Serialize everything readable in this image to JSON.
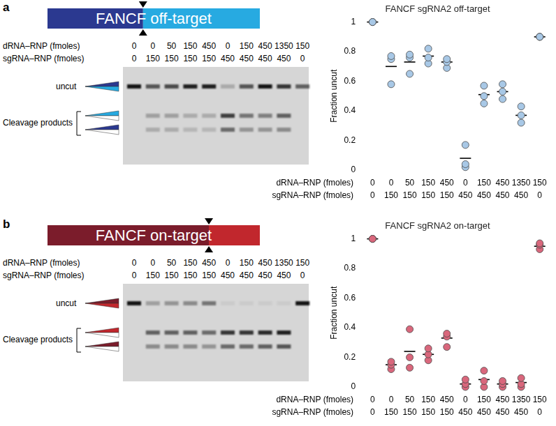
{
  "panels": [
    {
      "label": "a",
      "construct": "FANCF off-target",
      "colors": [
        "#2b3990",
        "#27aae1"
      ],
      "gel": {
        "rows": [
          {
            "label": "dRNA–RNP (fmoles)",
            "values": [
              0,
              0,
              50,
              150,
              450,
              0,
              150,
              450,
              1350,
              150
            ]
          },
          {
            "label": "sgRNA–RNP (fmoles)",
            "values": [
              0,
              150,
              150,
              150,
              150,
              450,
              450,
              450,
              450,
              0
            ]
          }
        ],
        "band_labels": [
          "uncut",
          "Cleavage products"
        ],
        "band_intensity": [
          [
            0.9,
            0,
            0
          ],
          [
            0.6,
            0.25,
            0.2
          ],
          [
            0.65,
            0.25,
            0.2
          ],
          [
            0.85,
            0.2,
            0.15
          ],
          [
            0.85,
            0.2,
            0.15
          ],
          [
            0.2,
            0.7,
            0.5
          ],
          [
            0.6,
            0.45,
            0.3
          ],
          [
            0.9,
            0.4,
            0.3
          ],
          [
            0.75,
            0.55,
            0.35
          ],
          [
            0.55,
            0,
            0
          ]
        ]
      }
    },
    {
      "label": "b",
      "construct": "FANCF on-target",
      "colors": [
        "#7b1c2b",
        "#c1272d"
      ],
      "gel": {
        "rows": [
          {
            "label": "dRNA–RNP (fmoles)",
            "values": [
              0,
              0,
              50,
              150,
              450,
              0,
              150,
              450,
              1350,
              150
            ]
          },
          {
            "label": "sgRNA–RNP (fmoles)",
            "values": [
              0,
              150,
              150,
              150,
              150,
              450,
              450,
              450,
              450,
              0
            ]
          }
        ],
        "band_labels": [
          "uncut",
          "Cleavage products"
        ],
        "band_intensity": [
          [
            0.9,
            0,
            0
          ],
          [
            0.25,
            0.55,
            0.35
          ],
          [
            0.3,
            0.55,
            0.35
          ],
          [
            0.35,
            0.55,
            0.35
          ],
          [
            0.45,
            0.5,
            0.3
          ],
          [
            0.05,
            0.75,
            0.5
          ],
          [
            0.05,
            0.75,
            0.5
          ],
          [
            0.05,
            0.8,
            0.55
          ],
          [
            0.05,
            0.85,
            0.6
          ],
          [
            0.9,
            0,
            0
          ]
        ]
      }
    }
  ],
  "chart_data": [
    {
      "type": "scatter",
      "title": "FANCF sgRNA2 off-target",
      "y_label": "Fraction uncut",
      "category_rows": [
        "dRNA–RNP (fmoles)",
        "sgRNA–RNP (fmoles)"
      ],
      "categories": [
        [
          0,
          0
        ],
        [
          0,
          150
        ],
        [
          50,
          150
        ],
        [
          150,
          150
        ],
        [
          450,
          150
        ],
        [
          0,
          450
        ],
        [
          150,
          450
        ],
        [
          450,
          450
        ],
        [
          1350,
          450
        ],
        [
          150,
          0
        ]
      ],
      "values": [
        [
          1,
          1,
          1
        ],
        [
          0.58,
          0.75,
          0.77
        ],
        [
          0.65,
          0.76,
          0.78
        ],
        [
          0.72,
          0.76,
          0.82
        ],
        [
          0.69,
          0.73,
          0.75
        ],
        [
          0.02,
          0.04,
          0.17
        ],
        [
          0.45,
          0.5,
          0.57
        ],
        [
          0.48,
          0.53,
          0.58
        ],
        [
          0.32,
          0.37,
          0.43
        ],
        [
          0.9,
          0.9,
          0.9
        ]
      ],
      "means": [
        1,
        0.7,
        0.73,
        0.77,
        0.73,
        0.08,
        0.51,
        0.53,
        0.37,
        0.9
      ],
      "color": "#a8c8e6",
      "marker": "circle",
      "ylim": [
        0,
        1
      ],
      "yticks": [
        0,
        0.2,
        0.4,
        0.6,
        0.8,
        1
      ],
      "grid": false
    },
    {
      "type": "scatter",
      "title": "FANCF sgRNA2 on-target",
      "y_label": "Fraction uncut",
      "category_rows": [
        "dRNA–RNP (fmoles)",
        "sgRNA–RNP (fmoles)"
      ],
      "categories": [
        [
          0,
          0
        ],
        [
          0,
          150
        ],
        [
          50,
          150
        ],
        [
          150,
          150
        ],
        [
          450,
          150
        ],
        [
          0,
          450
        ],
        [
          150,
          450
        ],
        [
          450,
          450
        ],
        [
          1350,
          450
        ],
        [
          150,
          0
        ]
      ],
      "values": [
        [
          1,
          1,
          1
        ],
        [
          0.12,
          0.15,
          0.17
        ],
        [
          0.13,
          0.2,
          0.39
        ],
        [
          0.18,
          0.22,
          0.26
        ],
        [
          0.27,
          0.34,
          0.36
        ],
        [
          0,
          0.02,
          0.05
        ],
        [
          0,
          0.04,
          0.11
        ],
        [
          0,
          0.02,
          0.04
        ],
        [
          0,
          0.02,
          0.06
        ],
        [
          0.93,
          0.96,
          0.97
        ]
      ],
      "means": [
        1,
        0.15,
        0.24,
        0.22,
        0.33,
        0.02,
        0.05,
        0.02,
        0.03,
        0.95
      ],
      "color": "#d9677c",
      "marker": "circle",
      "ylim": [
        0,
        1
      ],
      "yticks": [
        0,
        0.2,
        0.4,
        0.6,
        0.8,
        1
      ],
      "grid": false
    }
  ]
}
